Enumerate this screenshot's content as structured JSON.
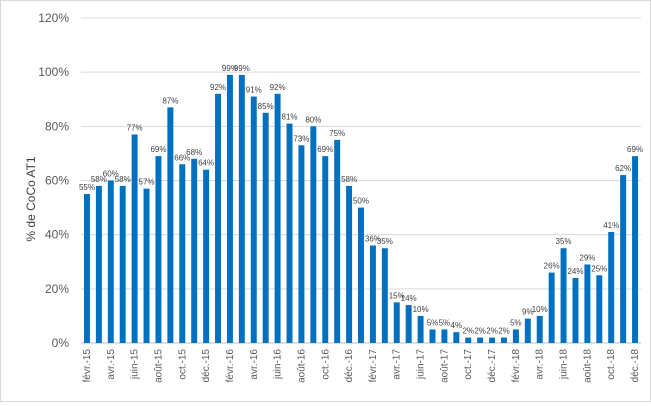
{
  "chart_data": {
    "type": "bar",
    "ylabel": "% de CoCo AT1",
    "xlabel": "",
    "title": "",
    "ylim": [
      0,
      120
    ],
    "yticks": [
      "0%",
      "20%",
      "40%",
      "60%",
      "80%",
      "100%",
      "120%"
    ],
    "grid": true,
    "legend": "none",
    "bar_color": "#0070c0",
    "categories": [
      "févr.-15",
      "mars-15",
      "avr.-15",
      "mai-15",
      "juin-15",
      "juil.-15",
      "août-15",
      "sept.-15",
      "oct.-15",
      "nov.-15",
      "déc.-15",
      "janv.-16",
      "févr.-16",
      "mars-16",
      "avr.-16",
      "mai-16",
      "juin-16",
      "juil.-16",
      "août-16",
      "sept.-16",
      "oct.-16",
      "nov.-16",
      "déc.-16",
      "janv.-17",
      "févr.-17",
      "mars-17",
      "avr.-17",
      "mai-17",
      "juin-17",
      "juil.-17",
      "août-17",
      "sept.-17",
      "oct.-17",
      "nov.-17",
      "déc.-17",
      "janv.-18",
      "févr.-18",
      "mars-18",
      "avr.-18",
      "mai-18",
      "juin-18",
      "juil.-18",
      "août-18",
      "sept.-18",
      "oct.-18",
      "nov.-18",
      "déc.-18"
    ],
    "tick_labels": [
      "févr.-15",
      "avr.-15",
      "juin-15",
      "août-15",
      "oct.-15",
      "déc.-15",
      "févr.-16",
      "avr.-16",
      "juin-16",
      "août-16",
      "oct.-16",
      "déc.-16",
      "févr.-17",
      "avr.-17",
      "juin-17",
      "août-17",
      "oct.-17",
      "déc.-17",
      "févr.-18",
      "avr.-18",
      "juin-18",
      "août-18",
      "oct.-18",
      "déc.-18"
    ],
    "values": [
      55,
      58,
      60,
      58,
      77,
      57,
      69,
      87,
      66,
      68,
      64,
      92,
      99,
      99,
      91,
      85,
      92,
      81,
      73,
      80,
      69,
      75,
      58,
      50,
      36,
      35,
      15,
      14,
      10,
      5,
      5,
      4,
      2,
      2,
      2,
      2,
      5,
      9,
      10,
      26,
      35,
      24,
      29,
      25,
      41,
      62,
      69
    ],
    "data_labels": [
      "55%",
      "58%",
      "60%",
      "58%",
      "77%",
      "57%",
      "69%",
      "87%",
      "66%",
      "68%",
      "64%",
      "92%",
      "99%",
      "99%",
      "91%",
      "85%",
      "92%",
      "81%",
      "73%",
      "80%",
      "69%",
      "75%",
      "58%",
      "50%",
      "36%",
      "35%",
      "15%",
      "14%",
      "10%",
      "5%",
      "5%",
      "4%",
      "2%",
      "2%",
      "2%",
      "2%",
      "5%",
      "9%",
      "10%",
      "26%",
      "35%",
      "24%",
      "29%",
      "25%",
      "41%",
      "62%",
      "69%"
    ]
  }
}
